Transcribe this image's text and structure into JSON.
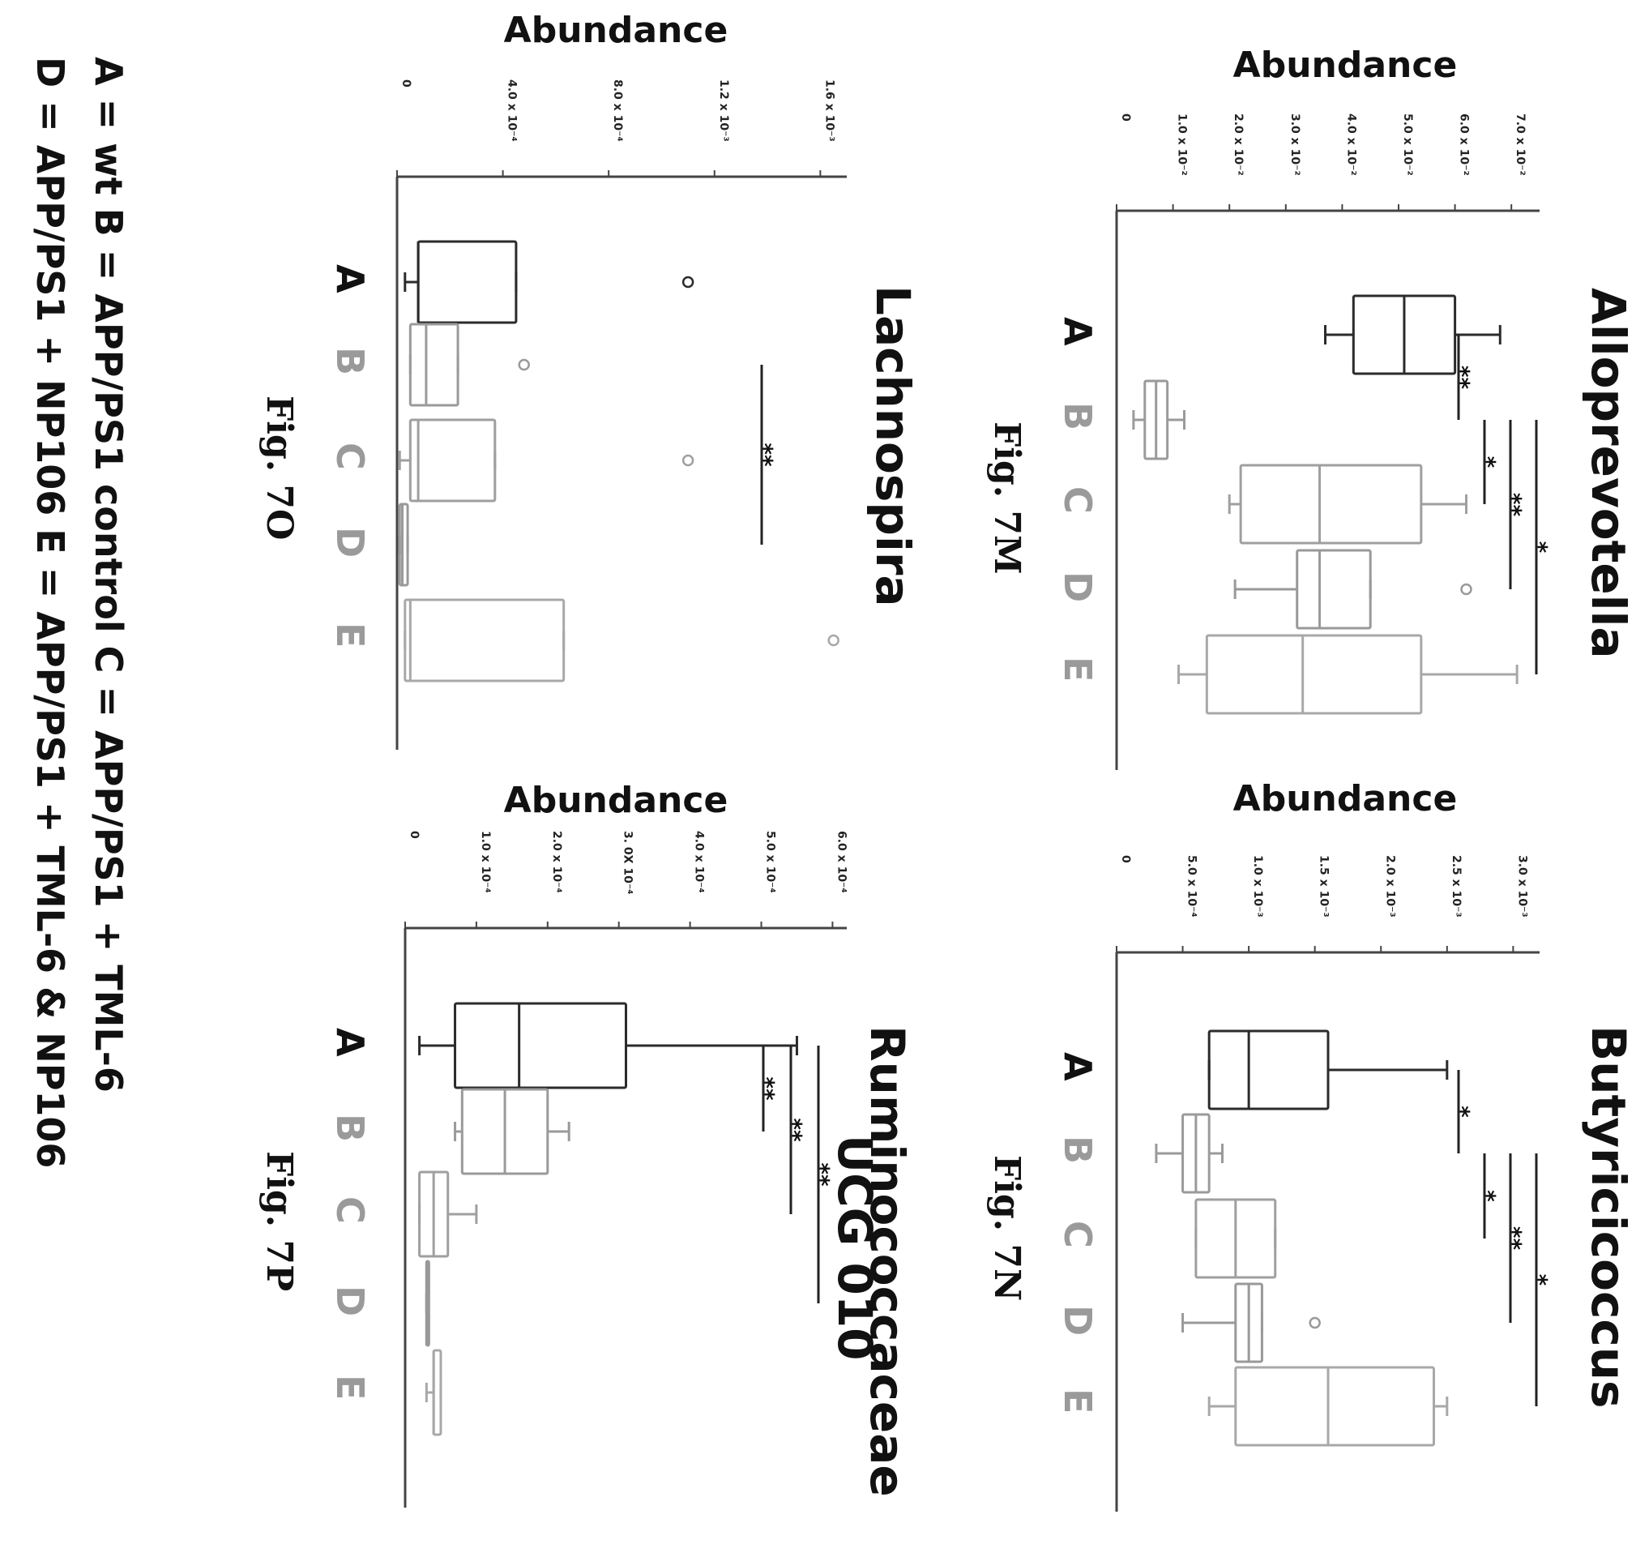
{
  "legend": {
    "line1": "A = wt     B = APP/PS1 control     C = APP/PS1 + TML-6",
    "line2": "D = APP/PS1 + NP106     E = APP/PS1 + TML-6 & NP106",
    "group_colors": {
      "A": "#2b2b2b",
      "B": "#9a9a9a",
      "C": "#9f9f9f",
      "D": "#999999",
      "E": "#a8a8a8"
    }
  },
  "chart_data": [
    {
      "type": "boxplot",
      "id": "7M",
      "title": "Alloprevotella",
      "fig_label": "Fig. 7M",
      "ylabel": "Abundance",
      "ylim": [
        0,
        0.0075
      ],
      "ticks": [
        "0",
        "1.0 x 10⁻²",
        "2.0 x 10⁻²",
        "3.0 x 10⁻²",
        "4.0 x 10⁻²",
        "5.0 x 10⁻²",
        "6.0 x 10⁻²",
        "7.0 x 10⁻²"
      ],
      "tick_values": [
        0,
        0.001,
        0.002,
        0.003,
        0.004,
        0.005,
        0.006,
        0.007
      ],
      "categories": [
        "A",
        "B",
        "C",
        "D",
        "E"
      ],
      "boxes": [
        {
          "min": 0.0037,
          "q1": 0.0042,
          "median": 0.0051,
          "q3": 0.006,
          "max": 0.0068,
          "outliers": []
        },
        {
          "min": 0.0003,
          "q1": 0.0005,
          "median": 0.0007,
          "q3": 0.0009,
          "max": 0.0012,
          "outliers": []
        },
        {
          "min": 0.002,
          "q1": 0.0022,
          "median": 0.0036,
          "q3": 0.0054,
          "max": 0.0062,
          "outliers": []
        },
        {
          "min": 0.0021,
          "q1": 0.0032,
          "median": 0.0036,
          "q3": 0.0045,
          "max": 0.0045,
          "outliers": [
            0.0062
          ]
        },
        {
          "min": 0.0011,
          "q1": 0.0016,
          "median": 0.0033,
          "q3": 0.0054,
          "max": 0.0071,
          "outliers": []
        }
      ],
      "significance": [
        {
          "from": 0,
          "to": 1,
          "label": "**"
        },
        {
          "from": 1,
          "to": 2,
          "label": "*"
        },
        {
          "from": 1,
          "to": 3,
          "label": "**"
        },
        {
          "from": 1,
          "to": 4,
          "label": "*"
        }
      ]
    },
    {
      "type": "boxplot",
      "id": "7N",
      "title": "Butyricicoccus",
      "fig_label": "Fig. 7N",
      "ylabel": "Abundance",
      "ylim": [
        0,
        0.0032
      ],
      "ticks": [
        "0",
        "5.0 x 10⁻⁴",
        "1.0 x 10⁻³",
        "1.5 x 10⁻³",
        "2.0 x 10⁻³",
        "2.5 x 10⁻³",
        "3.0 x 10⁻³"
      ],
      "tick_values": [
        0,
        0.0005,
        0.001,
        0.0015,
        0.002,
        0.0025,
        0.003
      ],
      "categories": [
        "A",
        "B",
        "C",
        "D",
        "E"
      ],
      "boxes": [
        {
          "min": 0.0007,
          "q1": 0.0007,
          "median": 0.001,
          "q3": 0.0016,
          "max": 0.0025,
          "outliers": []
        },
        {
          "min": 0.0003,
          "q1": 0.0005,
          "median": 0.0006,
          "q3": 0.0007,
          "max": 0.0008,
          "outliers": []
        },
        {
          "min": 0.0006,
          "q1": 0.0006,
          "median": 0.0009,
          "q3": 0.0012,
          "max": 0.0012,
          "outliers": []
        },
        {
          "min": 0.0005,
          "q1": 0.0009,
          "median": 0.001,
          "q3": 0.0011,
          "max": 0.0011,
          "outliers": [
            0.0015
          ]
        },
        {
          "min": 0.0007,
          "q1": 0.0009,
          "median": 0.0016,
          "q3": 0.0024,
          "max": 0.0025,
          "outliers": []
        }
      ],
      "significance": [
        {
          "from": 0,
          "to": 1,
          "label": "*"
        },
        {
          "from": 1,
          "to": 2,
          "label": "*"
        },
        {
          "from": 1,
          "to": 3,
          "label": "**"
        },
        {
          "from": 1,
          "to": 4,
          "label": "*"
        }
      ]
    },
    {
      "type": "boxplot",
      "id": "7O",
      "title": "Lachnospira",
      "fig_label": "Fig. 7O",
      "ylabel": "Abundance",
      "ylim": [
        0,
        0.0017
      ],
      "ticks": [
        "0",
        "4.0 x 10⁻⁴",
        "8.0 x 10⁻⁴",
        "1.2 x 10⁻³",
        "1.6 x 10⁻³"
      ],
      "tick_values": [
        0,
        0.0004,
        0.0008,
        0.0012,
        0.0016
      ],
      "categories": [
        "A",
        "B",
        "C",
        "D",
        "E"
      ],
      "boxes": [
        {
          "min": 3e-05,
          "q1": 8e-05,
          "median": 8e-05,
          "q3": 0.00045,
          "max": 0.00045,
          "outliers": [
            0.0011
          ]
        },
        {
          "min": 5e-05,
          "q1": 5e-05,
          "median": 0.00011,
          "q3": 0.00023,
          "max": 0.00023,
          "outliers": [
            0.00048
          ]
        },
        {
          "min": 1e-05,
          "q1": 5e-05,
          "median": 8e-05,
          "q3": 0.00037,
          "max": 0.00037,
          "outliers": [
            0.0011
          ]
        },
        {
          "min": 1e-05,
          "q1": 1e-05,
          "median": 2e-05,
          "q3": 4e-05,
          "max": 4e-05,
          "outliers": []
        },
        {
          "min": 3e-05,
          "q1": 3e-05,
          "median": 5e-05,
          "q3": 0.00063,
          "max": 0.00063,
          "outliers": [
            0.00165
          ]
        }
      ],
      "significance": [
        {
          "from": 1,
          "to": 3,
          "label": "**"
        }
      ]
    },
    {
      "type": "boxplot",
      "id": "7P",
      "title": "Ruminococcaceae UCG 010",
      "fig_label": "Fig. 7P",
      "ylabel": "Abundance",
      "ylim": [
        0,
        0.00062
      ],
      "ticks": [
        "0",
        "1.0 x 10⁻⁴",
        "2.0 x 10⁻⁴",
        "3. 0X 10⁻⁴",
        "4.0 x 10⁻⁴",
        "5.0 x 10⁻⁴",
        "6.0 x 10⁻⁴"
      ],
      "tick_values": [
        0,
        0.0001,
        0.0002,
        0.0003,
        0.0004,
        0.0005,
        0.0006
      ],
      "categories": [
        "A",
        "B",
        "C",
        "D",
        "E"
      ],
      "boxes": [
        {
          "min": 2e-05,
          "q1": 7e-05,
          "median": 0.00016,
          "q3": 0.00031,
          "max": 0.00055,
          "outliers": []
        },
        {
          "min": 7e-05,
          "q1": 8e-05,
          "median": 0.00014,
          "q3": 0.0002,
          "max": 0.00023,
          "outliers": []
        },
        {
          "min": 2e-05,
          "q1": 2e-05,
          "median": 4e-05,
          "q3": 6e-05,
          "max": 0.0001,
          "outliers": []
        },
        {
          "min": 3e-05,
          "q1": 3e-05,
          "median": 3e-05,
          "q3": 3e-05,
          "max": 3e-05,
          "outliers": []
        },
        {
          "min": 3e-05,
          "q1": 4e-05,
          "median": 4e-05,
          "q3": 5e-05,
          "max": 5e-05,
          "outliers": []
        }
      ],
      "significance": [
        {
          "from": 0,
          "to": 1,
          "label": "**"
        },
        {
          "from": 0,
          "to": 2,
          "label": "**"
        },
        {
          "from": 0,
          "to": 3,
          "label": "**"
        }
      ]
    }
  ]
}
